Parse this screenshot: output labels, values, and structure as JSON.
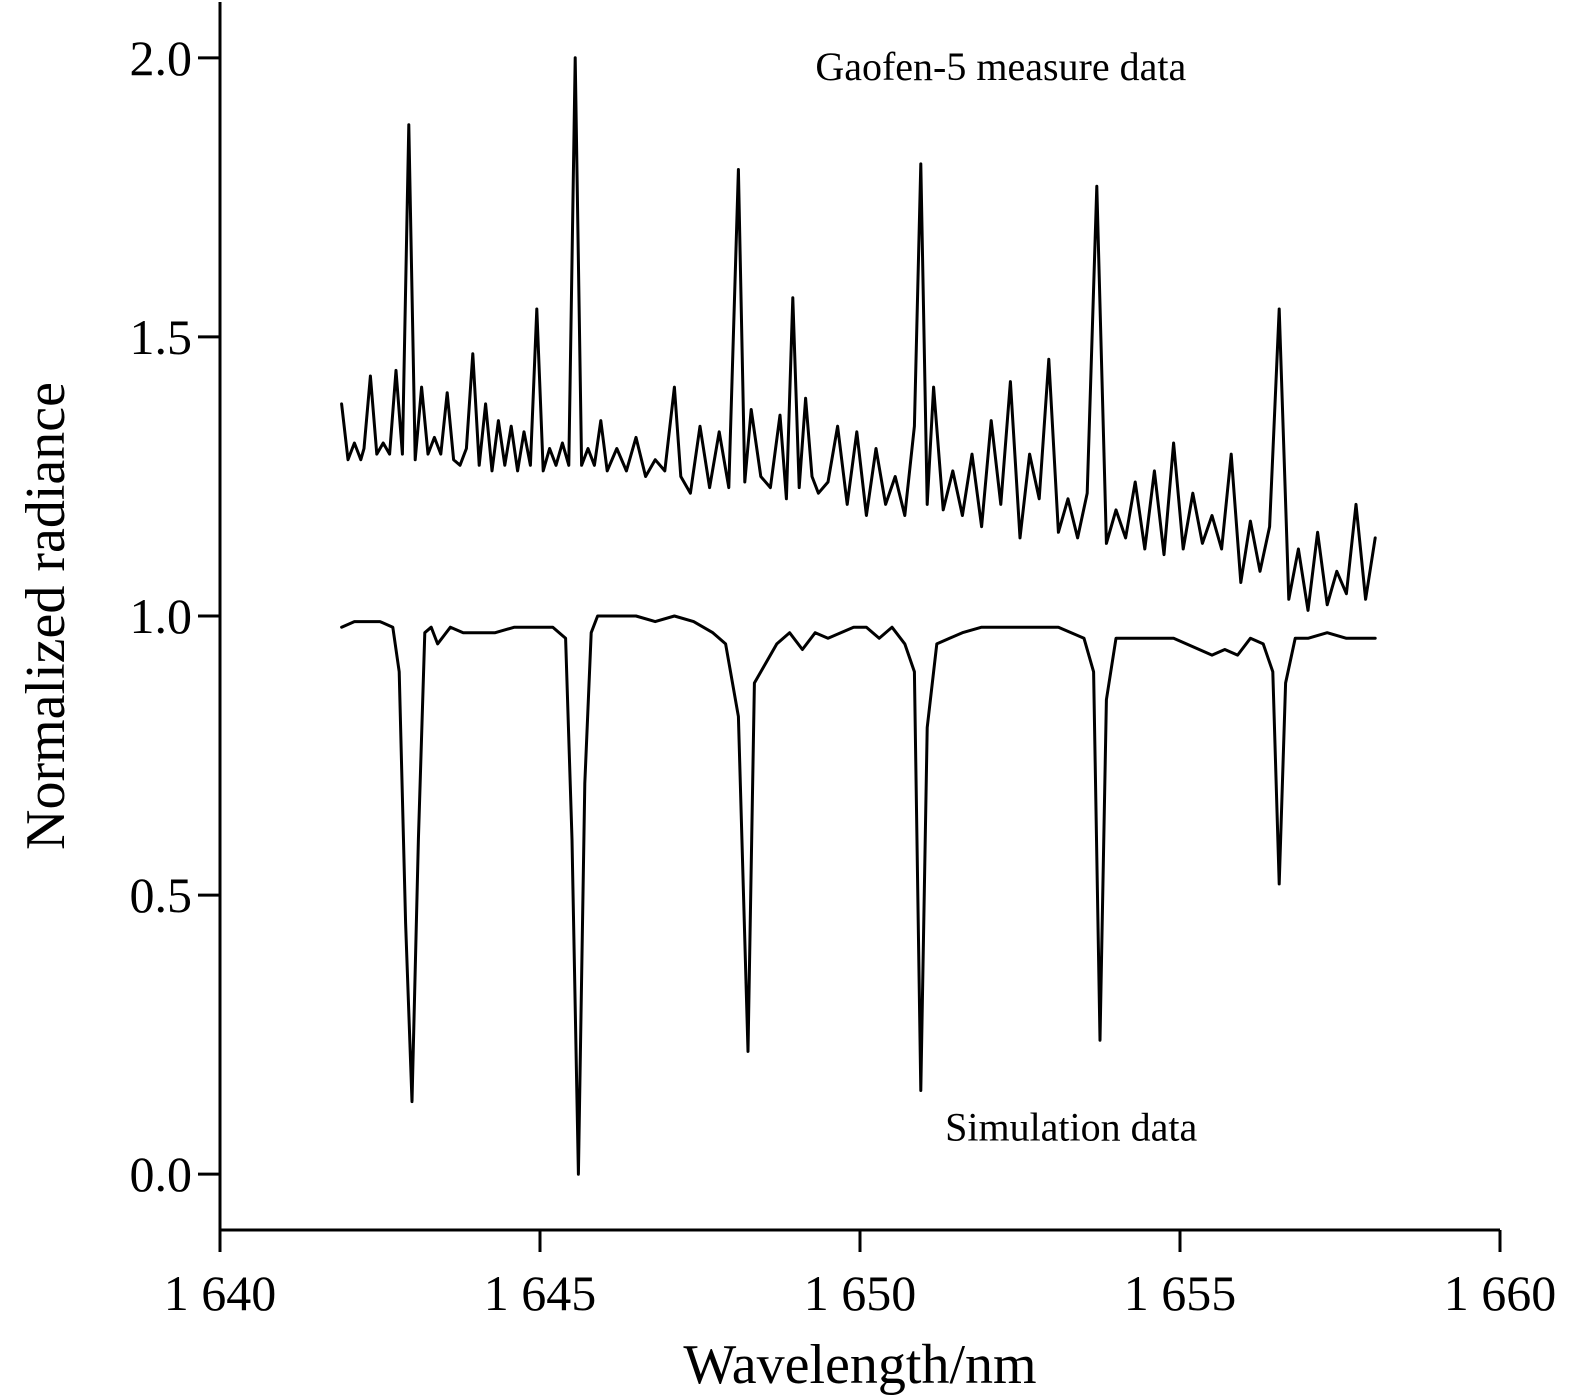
{
  "chart_data": {
    "type": "line",
    "title": "",
    "xlabel": "Wavelength/nm",
    "ylabel": "Normalized radiance",
    "xlim": [
      1640,
      1660
    ],
    "ylim": [
      -0.1,
      2.1
    ],
    "x_ticks": [
      {
        "value": 1640,
        "label": "1 640"
      },
      {
        "value": 1645,
        "label": "1 645"
      },
      {
        "value": 1650,
        "label": "1 650"
      },
      {
        "value": 1655,
        "label": "1 655"
      },
      {
        "value": 1660,
        "label": "1 660"
      }
    ],
    "y_ticks": [
      {
        "value": 0.0,
        "label": "0.0"
      },
      {
        "value": 0.5,
        "label": "0.5"
      },
      {
        "value": 1.0,
        "label": "1.0"
      },
      {
        "value": 1.5,
        "label": "1.5"
      },
      {
        "value": 2.0,
        "label": "2.0"
      }
    ],
    "grid": false,
    "series": [
      {
        "name": "Gaofen-5 measure data",
        "x": [
          1641.9,
          1642.0,
          1642.1,
          1642.2,
          1642.25,
          1642.35,
          1642.45,
          1642.55,
          1642.65,
          1642.75,
          1642.85,
          1642.95,
          1643.05,
          1643.15,
          1643.25,
          1643.35,
          1643.45,
          1643.55,
          1643.65,
          1643.75,
          1643.85,
          1643.95,
          1644.05,
          1644.15,
          1644.25,
          1644.35,
          1644.45,
          1644.55,
          1644.65,
          1644.75,
          1644.85,
          1644.95,
          1645.05,
          1645.15,
          1645.25,
          1645.35,
          1645.45,
          1645.55,
          1645.65,
          1645.75,
          1645.85,
          1645.95,
          1646.05,
          1646.2,
          1646.35,
          1646.5,
          1646.65,
          1646.8,
          1646.95,
          1647.1,
          1647.2,
          1647.35,
          1647.5,
          1647.65,
          1647.8,
          1647.95,
          1648.1,
          1648.2,
          1648.3,
          1648.45,
          1648.6,
          1648.75,
          1648.85,
          1648.95,
          1649.05,
          1649.15,
          1649.25,
          1649.35,
          1649.5,
          1649.65,
          1649.8,
          1649.95,
          1650.1,
          1650.25,
          1650.4,
          1650.55,
          1650.7,
          1650.85,
          1650.95,
          1651.05,
          1651.15,
          1651.3,
          1651.45,
          1651.6,
          1651.75,
          1651.9,
          1652.05,
          1652.2,
          1652.35,
          1652.5,
          1652.65,
          1652.8,
          1652.95,
          1653.1,
          1653.25,
          1653.4,
          1653.55,
          1653.7,
          1653.85,
          1654.0,
          1654.15,
          1654.3,
          1654.45,
          1654.6,
          1654.75,
          1654.9,
          1655.05,
          1655.2,
          1655.35,
          1655.5,
          1655.65,
          1655.8,
          1655.95,
          1656.1,
          1656.25,
          1656.4,
          1656.55,
          1656.7,
          1656.85,
          1657.0,
          1657.15,
          1657.3,
          1657.45,
          1657.6,
          1657.75,
          1657.9,
          1658.05
        ],
        "y": [
          1.38,
          1.28,
          1.31,
          1.28,
          1.3,
          1.43,
          1.29,
          1.31,
          1.29,
          1.44,
          1.29,
          1.88,
          1.28,
          1.41,
          1.29,
          1.32,
          1.29,
          1.4,
          1.28,
          1.27,
          1.3,
          1.47,
          1.27,
          1.38,
          1.26,
          1.35,
          1.27,
          1.34,
          1.26,
          1.33,
          1.27,
          1.55,
          1.26,
          1.3,
          1.27,
          1.31,
          1.27,
          2.0,
          1.27,
          1.3,
          1.27,
          1.35,
          1.26,
          1.3,
          1.26,
          1.32,
          1.25,
          1.28,
          1.26,
          1.41,
          1.25,
          1.22,
          1.34,
          1.23,
          1.33,
          1.23,
          1.8,
          1.24,
          1.37,
          1.25,
          1.23,
          1.36,
          1.21,
          1.57,
          1.23,
          1.39,
          1.25,
          1.22,
          1.24,
          1.34,
          1.2,
          1.33,
          1.18,
          1.3,
          1.2,
          1.25,
          1.18,
          1.34,
          1.81,
          1.2,
          1.41,
          1.19,
          1.26,
          1.18,
          1.29,
          1.16,
          1.35,
          1.2,
          1.42,
          1.14,
          1.29,
          1.21,
          1.46,
          1.15,
          1.21,
          1.14,
          1.22,
          1.77,
          1.13,
          1.19,
          1.14,
          1.24,
          1.12,
          1.26,
          1.11,
          1.31,
          1.12,
          1.22,
          1.13,
          1.18,
          1.12,
          1.29,
          1.06,
          1.17,
          1.08,
          1.16,
          1.55,
          1.03,
          1.12,
          1.01,
          1.15,
          1.02,
          1.08,
          1.04,
          1.2,
          1.03,
          1.14
        ]
      },
      {
        "name": "Simulation data",
        "x": [
          1641.9,
          1642.1,
          1642.3,
          1642.5,
          1642.7,
          1642.8,
          1642.9,
          1643.0,
          1643.1,
          1643.2,
          1643.3,
          1643.4,
          1643.6,
          1643.8,
          1644.0,
          1644.3,
          1644.6,
          1644.9,
          1645.2,
          1645.4,
          1645.5,
          1645.6,
          1645.7,
          1645.8,
          1645.9,
          1646.2,
          1646.5,
          1646.8,
          1647.1,
          1647.4,
          1647.7,
          1647.9,
          1648.1,
          1648.25,
          1648.35,
          1648.5,
          1648.7,
          1648.9,
          1649.1,
          1649.3,
          1649.5,
          1649.7,
          1649.9,
          1650.1,
          1650.3,
          1650.5,
          1650.7,
          1650.85,
          1650.95,
          1651.05,
          1651.2,
          1651.4,
          1651.6,
          1651.9,
          1652.2,
          1652.5,
          1652.8,
          1653.1,
          1653.3,
          1653.5,
          1653.65,
          1653.75,
          1653.85,
          1654.0,
          1654.3,
          1654.6,
          1654.9,
          1655.1,
          1655.3,
          1655.5,
          1655.7,
          1655.9,
          1656.1,
          1656.3,
          1656.45,
          1656.55,
          1656.65,
          1656.8,
          1657.0,
          1657.3,
          1657.6,
          1657.9,
          1658.05
        ],
        "y": [
          0.98,
          0.99,
          0.99,
          0.99,
          0.98,
          0.9,
          0.45,
          0.13,
          0.6,
          0.97,
          0.98,
          0.95,
          0.98,
          0.97,
          0.97,
          0.97,
          0.98,
          0.98,
          0.98,
          0.96,
          0.6,
          0.0,
          0.7,
          0.97,
          1.0,
          1.0,
          1.0,
          0.99,
          1.0,
          0.99,
          0.97,
          0.95,
          0.82,
          0.22,
          0.88,
          0.91,
          0.95,
          0.97,
          0.94,
          0.97,
          0.96,
          0.97,
          0.98,
          0.98,
          0.96,
          0.98,
          0.95,
          0.9,
          0.15,
          0.8,
          0.95,
          0.96,
          0.97,
          0.98,
          0.98,
          0.98,
          0.98,
          0.98,
          0.97,
          0.96,
          0.9,
          0.24,
          0.85,
          0.96,
          0.96,
          0.96,
          0.96,
          0.95,
          0.94,
          0.93,
          0.94,
          0.93,
          0.96,
          0.95,
          0.9,
          0.52,
          0.88,
          0.96,
          0.96,
          0.97,
          0.96,
          0.96,
          0.96
        ]
      }
    ],
    "annotations": [
      {
        "text": "Gaofen-5 measure data",
        "x": 1652.2,
        "y": 1.96
      },
      {
        "text": "Simulation data",
        "x": 1653.3,
        "y": 0.06
      }
    ]
  }
}
